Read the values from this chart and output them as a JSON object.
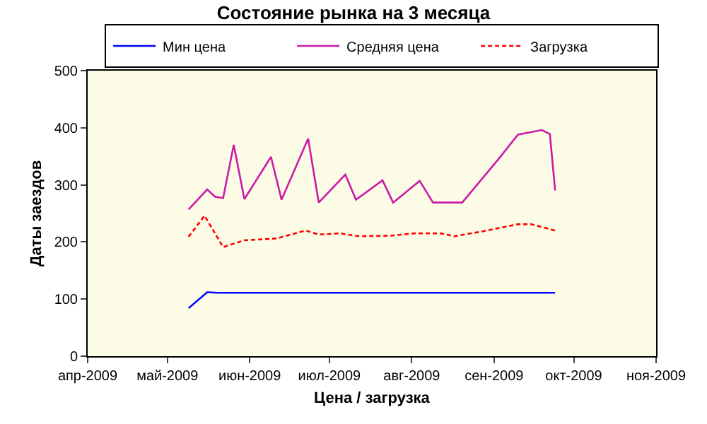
{
  "chart_data": {
    "type": "line",
    "title": "Состояние рынка на 3 месяца",
    "xlabel": "Цена / загрузка",
    "ylabel": "Даты заездов",
    "xlim": [
      "2009-04-01",
      "2009-11-01"
    ],
    "xticks": [
      {
        "value": "2009-04-01",
        "label": "апр-2009"
      },
      {
        "value": "2009-05-01",
        "label": "май-2009"
      },
      {
        "value": "2009-06-01",
        "label": "июн-2009"
      },
      {
        "value": "2009-07-01",
        "label": "июл-2009"
      },
      {
        "value": "2009-08-01",
        "label": "авг-2009"
      },
      {
        "value": "2009-09-01",
        "label": "сен-2009"
      },
      {
        "value": "2009-10-01",
        "label": "окт-2009"
      },
      {
        "value": "2009-11-01",
        "label": "ноя-2009"
      }
    ],
    "ylim": [
      0,
      500
    ],
    "yticks": [
      0,
      100,
      200,
      300,
      400,
      500
    ],
    "grid": false,
    "legend": "top",
    "series": [
      {
        "name": "Мин цена",
        "color": "#0000ff",
        "line_style": "solid",
        "x": [
          "2009-05-09",
          "2009-05-16",
          "2009-05-20",
          "2009-09-24"
        ],
        "values": [
          84,
          112,
          111,
          111
        ]
      },
      {
        "name": "Средняя цена",
        "color": "#cc1aa8",
        "line_style": "solid",
        "x": [
          "2009-05-09",
          "2009-05-16",
          "2009-05-19",
          "2009-05-22",
          "2009-05-26",
          "2009-05-30",
          "2009-06-09",
          "2009-06-13",
          "2009-06-23",
          "2009-06-27",
          "2009-07-07",
          "2009-07-11",
          "2009-07-21",
          "2009-07-25",
          "2009-08-04",
          "2009-08-09",
          "2009-08-20",
          "2009-09-03",
          "2009-09-10",
          "2009-09-19",
          "2009-09-22",
          "2009-09-24"
        ],
        "values": [
          257,
          292,
          279,
          277,
          370,
          275,
          349,
          274,
          381,
          269,
          318,
          274,
          308,
          269,
          307,
          269,
          269,
          347,
          388,
          396,
          389,
          290
        ]
      },
      {
        "name": "Загрузка",
        "color": "#ff0000",
        "line_style": "dashed",
        "x": [
          "2009-05-09",
          "2009-05-15",
          "2009-05-22",
          "2009-05-30",
          "2009-06-11",
          "2009-06-22",
          "2009-06-27",
          "2009-07-05",
          "2009-07-12",
          "2009-07-24",
          "2009-08-02",
          "2009-08-12",
          "2009-08-17",
          "2009-08-27",
          "2009-09-10",
          "2009-09-15",
          "2009-09-24"
        ],
        "values": [
          209,
          246,
          191,
          203,
          206,
          220,
          213,
          215,
          210,
          211,
          215,
          215,
          210,
          218,
          231,
          231,
          220
        ]
      }
    ]
  }
}
